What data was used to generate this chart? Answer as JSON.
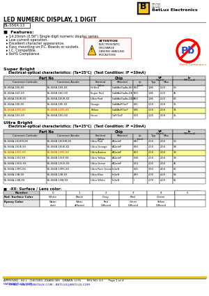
{
  "title": "LED NUMERIC DISPLAY, 1 DIGIT",
  "part_number": "BL-S56X-13",
  "company_name": "BetLux Electronics",
  "company_cn": "百怡光电",
  "features": [
    "14.20mm (0.56\") Single digit numeric display series.",
    "Low current operation.",
    "Excellent character appearance.",
    "Easy mounting on P.C. Boards or sockets.",
    "I.C. Compatible.",
    "RoHS Compliance."
  ],
  "super_bright_title": "Super Bright",
  "super_bright_subtitle": "    Electrical-optical characteristics: (Ta=25℃)  (Test Condition: IF =20mA)",
  "sb_col1": "Common Cathode",
  "sb_col2": "Common Anode",
  "sb_col3": "Emitted\nColor",
  "sb_col4": "Material",
  "sb_col5": "λp\n(nm)",
  "sb_col6": "Typ",
  "sb_col7": "Max",
  "sb_col8": "TYP.(mcd\n)",
  "sb_rows": [
    [
      "BL-S56A-1XS-XX",
      "BL-S56B-1XS-XX",
      "Hi Red",
      "GaAlAs/GaAs,SH",
      "660",
      "1.85",
      "2.20",
      "50"
    ],
    [
      "BL-S56A-1SO-XX",
      "BL-S56B-1SO-XX",
      "Super Red",
      "GaAlAs/GaAs,DH",
      "660",
      "1.85",
      "2.20",
      "45"
    ],
    [
      "BL-S56A-1XUR-XX",
      "BL-S56B-1XUR-XX",
      "Ultra Red",
      "GaAlAs/GaAs,DDH",
      "660",
      "1.85",
      "2.20",
      "60"
    ],
    [
      "BL-S56A-1XE-XX",
      "BL-S56B-1XE-XX",
      "Orange",
      "GaAlAsP/GaP",
      "635",
      "2.10",
      "2.50",
      "35"
    ],
    [
      "BL-S56A-13YO-XX",
      "BL-S56B-13YO-XX",
      "Yellow",
      "GaAlAsP/GaP",
      "585",
      "2.10",
      "2.50",
      "34"
    ],
    [
      "BL-S56A-1XG-XX",
      "BL-S56B-1XG-XX",
      "Green",
      "GaP/GaP",
      "570",
      "2.20",
      "2.50",
      "25"
    ]
  ],
  "ultra_bright_title": "Ultra Bright",
  "ultra_bright_subtitle": "    Electrical-optical characteristics: (Ta=25℃)  (Test Condition: IF =20mA)",
  "ub_rows": [
    [
      "BL-S56A-1XUHR-XX",
      "BL-S56B-1XUHR-XX",
      "Ultra Red",
      "AlGaInP",
      "645",
      "2.10",
      "2.50",
      "50"
    ],
    [
      "BL-S56A-1XUE-XX",
      "BL-S56B-1XUE-XX",
      "Ultra Orange",
      "AlGaInP",
      "630",
      "2.10",
      "2.50",
      "58"
    ],
    [
      "BL-S56A-13YO-XX",
      "BL-S56B-13YO-XX",
      "Ultra Amber",
      "AlGaInP",
      "619",
      "2.10",
      "2.50",
      "38"
    ],
    [
      "BL-S56A-13UY-XX",
      "BL-S56B-13UY-XX",
      "Ultra Yellow",
      "AlGaInP",
      "590",
      "2.10",
      "2.50",
      "38"
    ],
    [
      "BL-S56A-13UG-XX",
      "BL-S56B-13UG-XX",
      "Ultra Green",
      "AlGaInP",
      "574",
      "2.20",
      "2.50",
      "45"
    ],
    [
      "BL-S56A-13PG-XX",
      "BL-S56B-13PG-XX",
      "Ultra Pure Green",
      "InGaN",
      "525",
      "3.60",
      "4.50",
      "60"
    ],
    [
      "BL-S56A-13B-XX",
      "BL-S56B-13B-XX",
      "Ultra Blue",
      "InGaN",
      "470",
      "2.70",
      "4.20",
      "58"
    ],
    [
      "BL-S56A-13W-XX",
      "BL-S56B-13W-XX",
      "Ultra White",
      "InGaN",
      "/",
      "2.70",
      "4.20",
      "65"
    ]
  ],
  "lens_title": "-XX: Surface / Lens color:",
  "lens_headers": [
    "Number",
    "0",
    "1",
    "2",
    "3",
    "4",
    "5"
  ],
  "lens_row1": [
    "Ref. Surface Color",
    "White",
    "Black",
    "Gray",
    "Red",
    "Green",
    ""
  ],
  "lens_row2": [
    "Epoxy Color",
    "Water\nclear",
    "White\ndiffused",
    "Red\nDiffused",
    "Green\nDiffused",
    "Yellow\nDiffused",
    ""
  ],
  "footer_approved": "APPROVED : XU L   CHECKED: ZHANG WH   DRAWN: LI FS       REV NO: V.2      Page 1 of 4",
  "footer_web": "WWW.BETLUX.COM",
  "footer_email": "      EMAIL: SALES@BETLUX.COM ; BETLUX@BETLUX.COM",
  "bg_color": "#ffffff"
}
